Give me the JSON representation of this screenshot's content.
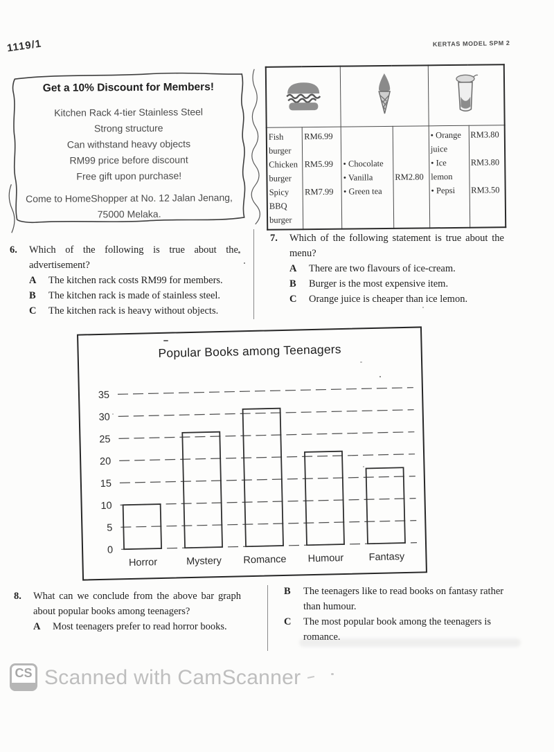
{
  "page": {
    "code": "1119/1",
    "header_label": "KERTAS MODEL SPM 2"
  },
  "advertisement": {
    "title": "Get a 10% Discount for Members!",
    "body_lines": [
      "Kitchen Rack 4-tier Stainless Steel",
      "Strong structure",
      "Can withstand heavy objects",
      "RM99 price before discount",
      "Free gift upon purchase!"
    ],
    "address": [
      "Come to HomeShopper at No. 12 Jalan Jenang,",
      "75000 Melaka."
    ]
  },
  "menu": {
    "icons": [
      "burger-icon",
      "ice-cream-icon",
      "drink-icon"
    ],
    "burgers": [
      {
        "name": "Fish burger",
        "price": "RM6.99"
      },
      {
        "name": "Chicken burger",
        "price": "RM5.99"
      },
      {
        "name": "Spicy BBQ burger",
        "price": "RM7.99"
      }
    ],
    "ice_cream": {
      "flavours": [
        "• Chocolate",
        "• Vanilla",
        "• Green tea"
      ],
      "price": "RM2.80"
    },
    "drinks": [
      {
        "name": "• Orange juice",
        "price": "RM3.80"
      },
      {
        "name": "• Ice lemon",
        "price": "RM3.80"
      },
      {
        "name": "• Pepsi",
        "price": "RM3.50"
      }
    ]
  },
  "questions": {
    "q6": {
      "number": "6.",
      "text": "Which of the following is true about the advertisement?",
      "options": [
        {
          "letter": "A",
          "text": "The kitchen rack costs RM99 for members."
        },
        {
          "letter": "B",
          "text": "The kitchen rack is made of stainless steel."
        },
        {
          "letter": "C",
          "text": "The kitchen rack is heavy without objects."
        }
      ]
    },
    "q7": {
      "number": "7.",
      "text": "Which of the following statement is true about the menu?",
      "options": [
        {
          "letter": "A",
          "text": "There are two flavours of ice-cream."
        },
        {
          "letter": "B",
          "text": "Burger is the most expensive item."
        },
        {
          "letter": "C",
          "text": "Orange juice is cheaper than ice lemon."
        }
      ]
    },
    "q8": {
      "number": "8.",
      "text": "What can we conclude from the above bar graph about popular books among teenagers?",
      "options": [
        {
          "letter": "A",
          "text": "Most teenagers prefer to read horror books."
        },
        {
          "letter": "B",
          "text": "The teenagers like to read books on fantasy rather than humour."
        },
        {
          "letter": "C",
          "text": "The most popular book among the teenagers is romance."
        }
      ]
    }
  },
  "chart_data": {
    "type": "bar",
    "title": "Popular Books among Teenagers",
    "categories": [
      "Horror",
      "Mystery",
      "Romance",
      "Humour",
      "Fantasy"
    ],
    "values": [
      10,
      26,
      31,
      21,
      17
    ],
    "xlabel": "",
    "ylabel": "",
    "ylim": [
      0,
      35
    ],
    "ytick_step": 5,
    "grid": "dashed-horizontal",
    "bar_style": "outlined-unfilled",
    "legend": false
  },
  "footer": {
    "logo_text": "CS",
    "scanned_label": "Scanned with CamScanner"
  }
}
